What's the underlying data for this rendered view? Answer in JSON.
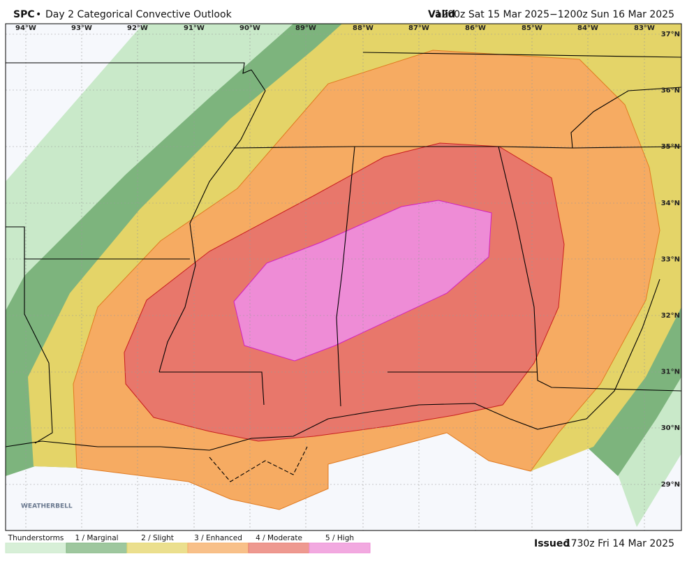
{
  "header": {
    "product": "SPC",
    "separator": "•",
    "title": "Day 2 Categorical Convective Outlook",
    "valid_label": "Valid",
    "valid_time": "1200z Sat 15 Mar 2025−1200z Sun 16 Mar 2025"
  },
  "longitude_labels": [
    "94°W",
    "93°W",
    "92°W",
    "91°W",
    "90°W",
    "89°W",
    "88°W",
    "87°W",
    "86°W",
    "85°W",
    "84°W",
    "83°W"
  ],
  "latitude_labels": [
    "37°N",
    "36°N",
    "35°N",
    "34°N",
    "33°N",
    "32°N",
    "31°N",
    "30°N",
    "29°N"
  ],
  "legend": [
    {
      "label": "Thunderstorms",
      "color": "#c9e9c9"
    },
    {
      "label": "1 / Marginal",
      "color": "#7db47d"
    },
    {
      "label": "2 / Slight",
      "color": "#e4d468"
    },
    {
      "label": "3 / Enhanced",
      "color": "#f6ab62"
    },
    {
      "label": "4 / Moderate",
      "color": "#e8776b"
    },
    {
      "label": "5 / High",
      "color": "#ee8cd6"
    }
  ],
  "watermark": "WEATHERBELL",
  "issued": {
    "label": "Issued",
    "time": "1730z Fri 14 Mar 2025"
  }
}
